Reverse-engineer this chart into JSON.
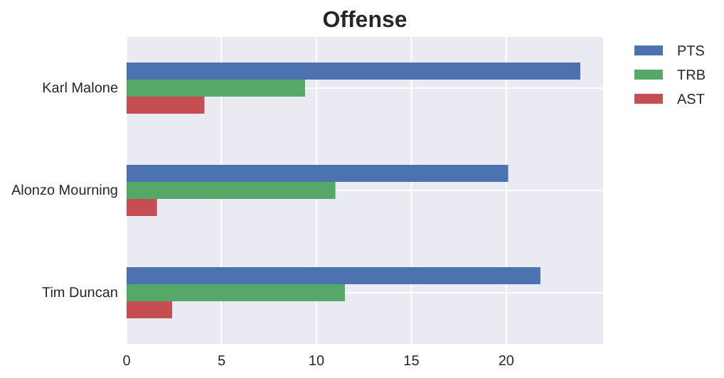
{
  "chart_data": {
    "type": "bar",
    "orientation": "horizontal",
    "title": "Offense",
    "categories": [
      "Karl Malone",
      "Alonzo Mourning",
      "Tim Duncan"
    ],
    "series": [
      {
        "name": "PTS",
        "color": "#4c72b0",
        "values": [
          23.9,
          20.1,
          21.8
        ]
      },
      {
        "name": "TRB",
        "color": "#55a868",
        "values": [
          9.4,
          11.0,
          11.5
        ]
      },
      {
        "name": "AST",
        "color": "#c44e52",
        "values": [
          4.1,
          1.6,
          2.4
        ]
      }
    ],
    "xlim": [
      0,
      25.1
    ],
    "xticks": [
      0,
      5,
      10,
      15,
      20
    ],
    "grid": true,
    "legend": "top right"
  }
}
